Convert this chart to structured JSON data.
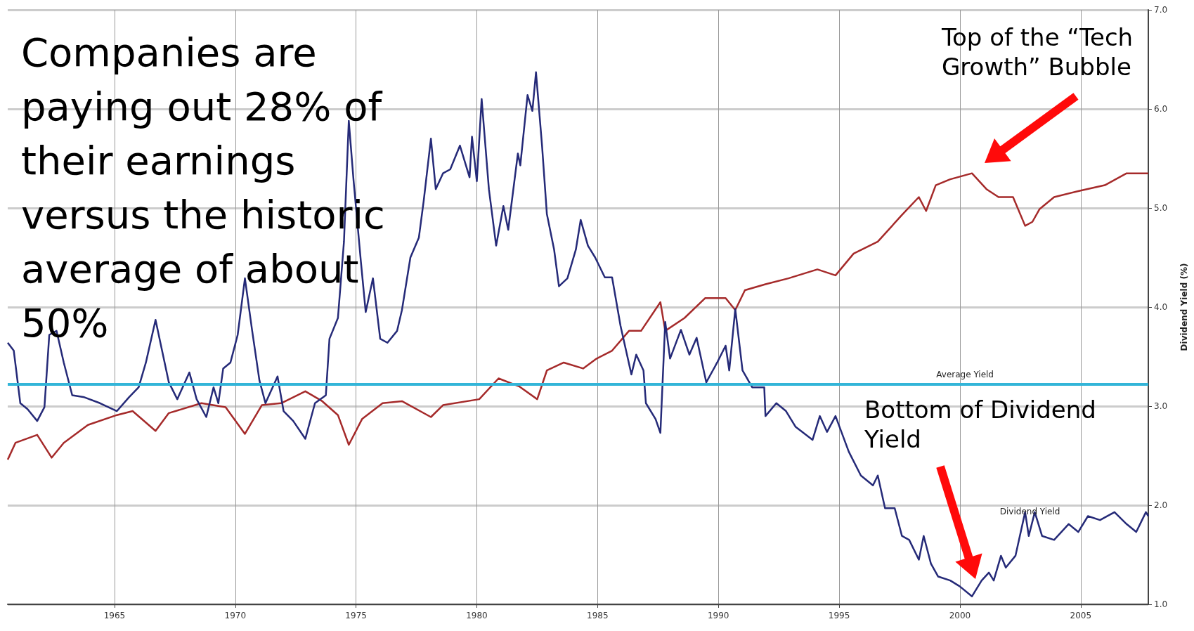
{
  "chart_data": {
    "type": "line",
    "ylabel": "Dividend Yield (%)",
    "xlim": [
      1960.58,
      2007.8
    ],
    "xticks": [
      1965,
      1970,
      1975,
      1980,
      1985,
      1990,
      1995,
      2000,
      2005
    ],
    "ylim": [
      1,
      7
    ],
    "yticks": [
      {
        "value": 1,
        "label": "1.0"
      },
      {
        "value": 2,
        "label": "2.0"
      },
      {
        "value": 3,
        "label": "3.0"
      },
      {
        "value": 4,
        "label": "4.0"
      },
      {
        "value": 5,
        "label": "5.0"
      },
      {
        "value": 6,
        "label": "6.0"
      },
      {
        "value": 7,
        "label": "7.0"
      }
    ],
    "grid": true,
    "marker": "none",
    "series": [
      {
        "color": "#a52a2a",
        "x": [
          1960.58,
          1960.9,
          1961.8,
          1962.4,
          1962.9,
          1963.9,
          1965.1,
          1965.75,
          1966.7,
          1967.25,
          1968.6,
          1969.6,
          1970.4,
          1971.1,
          1971.9,
          1972.9,
          1973.6,
          1974.25,
          1974.7,
          1975.25,
          1976.1,
          1976.9,
          1978.1,
          1978.6,
          1980.1,
          1980.9,
          1981.75,
          1982.5,
          1982.9,
          1983.6,
          1984.4,
          1984.96,
          1985.6,
          1986.3,
          1986.8,
          1987.6,
          1987.8,
          1988.6,
          1989.45,
          1990.3,
          1990.7,
          1991.1,
          1991.95,
          1992.9,
          1994.1,
          1994.85,
          1995.6,
          1996.6,
          1997.6,
          1998.3,
          1998.6,
          1999.0,
          1999.6,
          2000.5,
          2001.1,
          2001.6,
          2002.2,
          2002.7,
          2003.0,
          2003.3,
          2003.9,
          2004.9,
          2006.0,
          2006.9,
          2007.8
        ],
        "values": [
          2.46,
          2.63,
          2.71,
          2.48,
          2.63,
          2.81,
          2.91,
          2.95,
          2.75,
          2.93,
          3.03,
          2.99,
          2.72,
          3.01,
          3.03,
          3.15,
          3.05,
          2.91,
          2.61,
          2.87,
          3.03,
          3.05,
          2.89,
          3.01,
          3.07,
          3.28,
          3.2,
          3.07,
          3.36,
          3.44,
          3.38,
          3.48,
          3.56,
          3.76,
          3.76,
          4.05,
          3.76,
          3.89,
          4.09,
          4.09,
          3.97,
          4.17,
          4.23,
          4.29,
          4.38,
          4.32,
          4.54,
          4.66,
          4.93,
          5.11,
          4.97,
          5.23,
          5.29,
          5.35,
          5.19,
          5.11,
          5.11,
          4.82,
          4.86,
          4.99,
          5.11,
          5.17,
          5.23,
          5.35,
          5.35
        ]
      },
      {
        "name": "Dividend Yield",
        "color": "#252a78",
        "x": [
          1960.58,
          1960.83,
          1961.1,
          1961.4,
          1961.8,
          1962.1,
          1962.3,
          1962.6,
          1962.9,
          1963.25,
          1963.75,
          1964.4,
          1965.1,
          1965.6,
          1966.0,
          1966.3,
          1966.7,
          1966.9,
          1967.25,
          1967.6,
          1968.1,
          1968.4,
          1968.8,
          1969.1,
          1969.3,
          1969.5,
          1969.8,
          1970.1,
          1970.4,
          1970.7,
          1971.0,
          1971.25,
          1971.75,
          1972.0,
          1972.4,
          1972.9,
          1973.3,
          1973.75,
          1973.9,
          1974.25,
          1974.5,
          1974.7,
          1974.9,
          1975.2,
          1975.4,
          1975.7,
          1976.0,
          1976.3,
          1976.7,
          1976.9,
          1977.25,
          1977.6,
          1977.8,
          1978.1,
          1978.3,
          1978.6,
          1978.9,
          1979.3,
          1979.7,
          1979.8,
          1980.0,
          1980.2,
          1980.5,
          1980.8,
          1981.1,
          1981.3,
          1981.7,
          1981.8,
          1982.1,
          1982.3,
          1982.45,
          1982.7,
          1982.9,
          1983.2,
          1983.4,
          1983.75,
          1984.1,
          1984.3,
          1984.6,
          1984.9,
          1985.3,
          1985.6,
          1985.95,
          1986.4,
          1986.6,
          1986.9,
          1987.0,
          1987.4,
          1987.6,
          1987.8,
          1988.0,
          1988.45,
          1988.8,
          1989.1,
          1989.5,
          1989.95,
          1990.3,
          1990.45,
          1990.7,
          1991.0,
          1991.4,
          1991.9,
          1991.95,
          1992.4,
          1992.8,
          1993.2,
          1993.9,
          1994.2,
          1994.5,
          1994.85,
          1995.4,
          1995.9,
          1996.4,
          1996.6,
          1996.9,
          1997.3,
          1997.6,
          1997.9,
          1998.3,
          1998.5,
          1998.8,
          1999.1,
          1999.6,
          2000.0,
          2000.5,
          2000.9,
          2001.2,
          2001.4,
          2001.7,
          2001.9,
          2002.3,
          2002.7,
          2002.85,
          2003.1,
          2003.4,
          2003.9,
          2004.5,
          2004.9,
          2005.3,
          2005.8,
          2006.4,
          2006.9,
          2007.3,
          2007.7,
          2007.8
        ],
        "values": [
          3.64,
          3.56,
          3.03,
          2.97,
          2.85,
          2.99,
          3.72,
          3.76,
          3.44,
          3.11,
          3.09,
          3.03,
          2.95,
          3.09,
          3.19,
          3.44,
          3.87,
          3.64,
          3.24,
          3.07,
          3.34,
          3.07,
          2.89,
          3.19,
          3.03,
          3.38,
          3.44,
          3.72,
          4.29,
          3.76,
          3.26,
          3.03,
          3.3,
          2.95,
          2.85,
          2.67,
          3.03,
          3.11,
          3.68,
          3.89,
          4.66,
          5.88,
          5.27,
          4.46,
          3.95,
          4.29,
          3.68,
          3.64,
          3.76,
          3.97,
          4.5,
          4.7,
          5.07,
          5.7,
          5.19,
          5.35,
          5.39,
          5.63,
          5.31,
          5.72,
          5.27,
          6.1,
          5.19,
          4.62,
          5.02,
          4.78,
          5.55,
          5.43,
          6.14,
          5.98,
          6.37,
          5.63,
          4.94,
          4.58,
          4.21,
          4.29,
          4.58,
          4.88,
          4.62,
          4.5,
          4.3,
          4.3,
          3.81,
          3.32,
          3.52,
          3.36,
          3.03,
          2.87,
          2.73,
          3.85,
          3.48,
          3.77,
          3.52,
          3.69,
          3.24,
          3.44,
          3.61,
          3.36,
          3.98,
          3.36,
          3.19,
          3.19,
          2.9,
          3.03,
          2.95,
          2.79,
          2.66,
          2.9,
          2.74,
          2.9,
          2.54,
          2.3,
          2.2,
          2.3,
          1.97,
          1.97,
          1.69,
          1.65,
          1.45,
          1.69,
          1.41,
          1.28,
          1.24,
          1.18,
          1.08,
          1.24,
          1.32,
          1.24,
          1.49,
          1.37,
          1.49,
          1.93,
          1.69,
          1.93,
          1.69,
          1.65,
          1.81,
          1.73,
          1.89,
          1.85,
          1.93,
          1.81,
          1.73,
          1.93,
          1.89
        ]
      }
    ],
    "ref_lines": [
      {
        "axis": "y",
        "value": 3.22,
        "label": "Average Yield",
        "color": "#33b5d8"
      }
    ],
    "annotations": [
      "Companies are paying out 28% of their earnings versus the historic average of about 50%",
      "Top of the “Tech Growth” Bubble",
      "Bottom of Dividend Yield"
    ]
  }
}
